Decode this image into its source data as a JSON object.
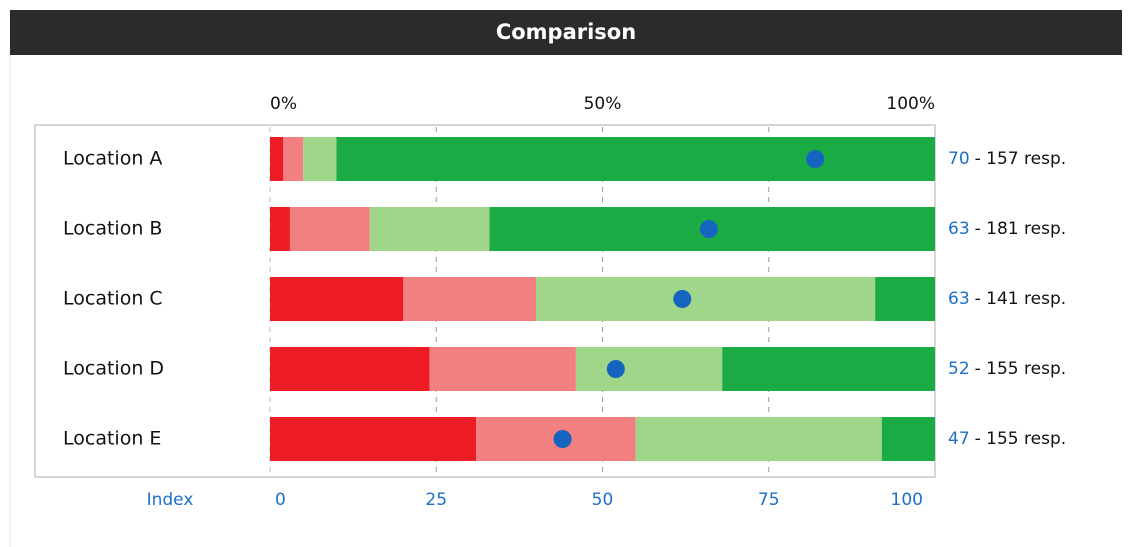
{
  "chart_data": {
    "type": "stacked-bar-horizontal",
    "title": "Comparison",
    "categories": [
      "Location A",
      "Location B",
      "Location C",
      "Location D",
      "Location E"
    ],
    "series": [
      {
        "color": "#ed1c24",
        "values": [
          2,
          3,
          20,
          24,
          31
        ]
      },
      {
        "color": "#f28080",
        "values": [
          3,
          12,
          20,
          22,
          24
        ]
      },
      {
        "color": "#a0d68a",
        "values": [
          5,
          18,
          51,
          22,
          37
        ]
      },
      {
        "color": "#1aab45",
        "values": [
          90,
          67,
          9,
          32,
          8
        ]
      }
    ],
    "xlim": [
      0,
      100
    ],
    "xticks": [
      {
        "value": 0,
        "label": "0%"
      },
      {
        "value": 50,
        "label": "50%"
      },
      {
        "value": 100,
        "label": "100%"
      }
    ],
    "grid_values": [
      25,
      50,
      75
    ],
    "markers": {
      "color": "#1565c0",
      "values": [
        82,
        66,
        62,
        52,
        44
      ]
    },
    "index_axis_label": "Index",
    "index_lim": [
      0,
      100
    ],
    "index_ticks": [
      0,
      25,
      50,
      75,
      100
    ],
    "index_values": [
      70,
      63,
      63,
      52,
      47
    ],
    "response_labels": [
      "- 157 resp.",
      "- 181 resp.",
      "- 141 resp.",
      "- 155 resp.",
      "- 155 resp."
    ]
  }
}
